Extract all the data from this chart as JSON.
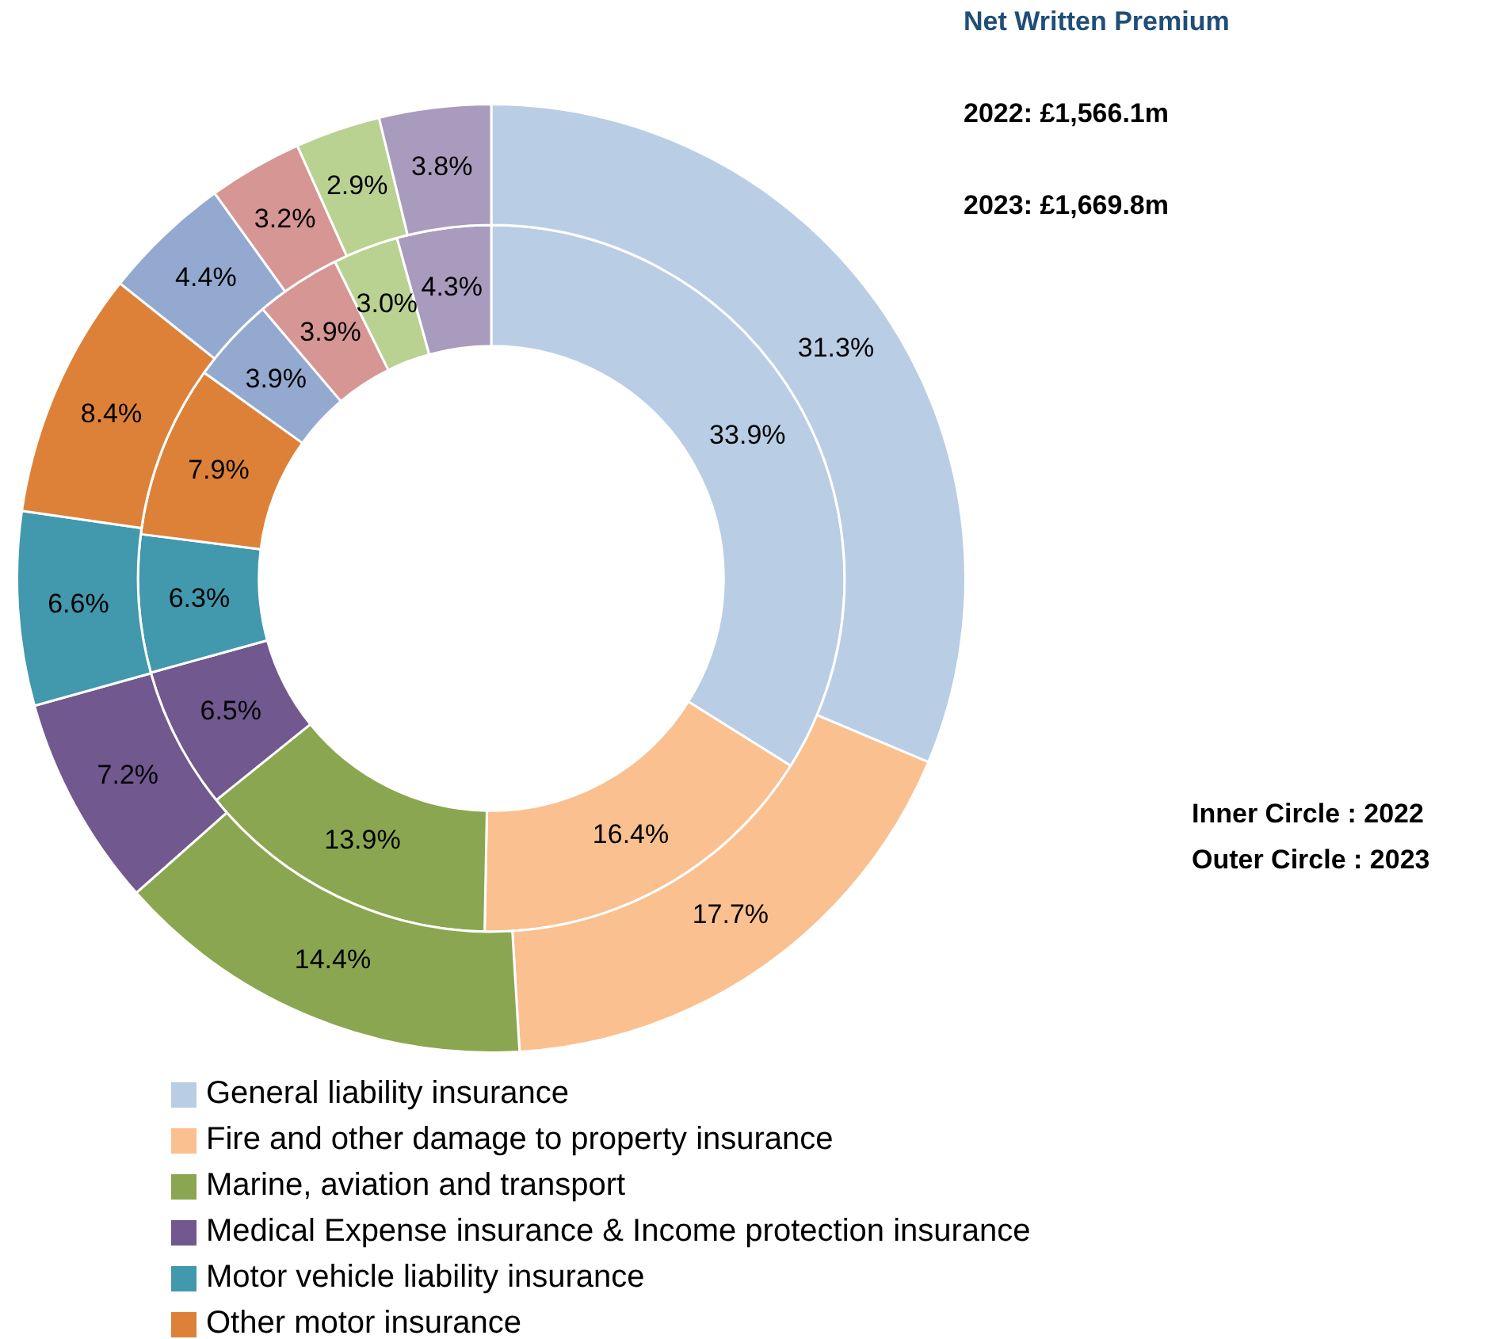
{
  "chart_data": {
    "type": "donut",
    "title": "Net Written Premium",
    "categories": [
      "General liability insurance",
      "Fire and other damage to property insurance",
      "Marine, aviation and transport",
      "Medical Expense insurance & Income protection insurance",
      "Motor vehicle liability insurance",
      "Other motor insurance",
      null,
      null,
      null,
      null
    ],
    "colors": [
      "#b9cde5",
      "#fac090",
      "#8ba650",
      "#71588f",
      "#4298ad",
      "#dd8139",
      "#93a9cf",
      "#d69693",
      "#b9d292",
      "#a99bbd"
    ],
    "series": [
      {
        "values": [
          33.9,
          16.4,
          13.9,
          6.5,
          6.3,
          7.9,
          3.9,
          3.9,
          3.0,
          4.3
        ],
        "value_labels": [
          "33.9%",
          "16.4%",
          "13.9%",
          "6.5%",
          "6.3%",
          "7.9%",
          "3.9%",
          "3.9%",
          "3.0%",
          "4.3%"
        ]
      },
      {
        "values": [
          31.3,
          17.7,
          14.4,
          7.2,
          6.6,
          8.4,
          4.4,
          3.2,
          2.9,
          3.8
        ],
        "value_labels": [
          "31.3%",
          "17.7%",
          "14.4%",
          "7.2%",
          "6.6%",
          "8.4%",
          "4.4%",
          "3.2%",
          "2.9%",
          "3.8%"
        ]
      }
    ],
    "annotations": [
      "2022: £1,566.1m",
      "2023: £1,669.8m",
      "Inner Circle : 2022",
      "Outer Circle : 2023"
    ],
    "legend": "bottom"
  }
}
